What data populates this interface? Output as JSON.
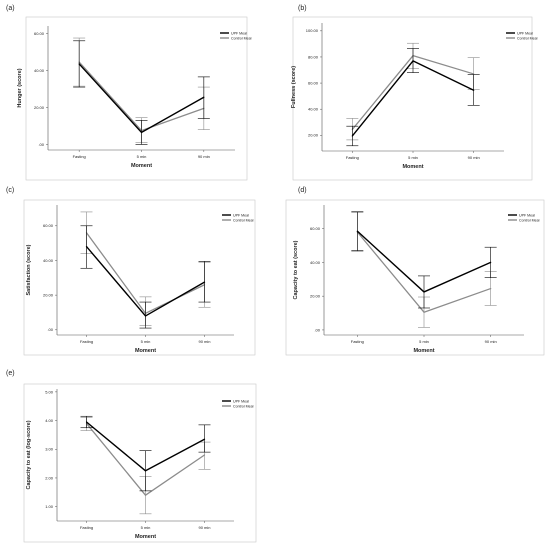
{
  "figure_title": "",
  "colors": {
    "upf": "#000000",
    "control": "#8c8c8c",
    "axis": "#555555",
    "frame": "#c8c8c8"
  },
  "chart_data": [
    {
      "panel": "(a)",
      "type": "line",
      "title": "",
      "categories": [
        "Fasting",
        "5 min",
        "90 min"
      ],
      "xlabel": "Moment",
      "ylabel": "Hunger (score)",
      "ylim": [
        -3,
        64
      ],
      "yticks": [
        0,
        20,
        40,
        60
      ],
      "ytick_labels": [
        ".00",
        "20.00",
        "40.00",
        "60.00"
      ],
      "grid": false,
      "legend_position": "top-right",
      "series": [
        {
          "name": "UPF Meal",
          "color": "#000000",
          "values": [
            43.5,
            6.5,
            25.5
          ],
          "ci_low": [
            31,
            0,
            14
          ],
          "ci_high": [
            56,
            13,
            36.5
          ]
        },
        {
          "name": "Control Meal",
          "color": "#8c8c8c",
          "values": [
            44.5,
            7.5,
            19.5
          ],
          "ci_low": [
            31.5,
            1,
            8
          ],
          "ci_high": [
            57.5,
            14.5,
            31
          ]
        }
      ]
    },
    {
      "panel": "(b)",
      "type": "line",
      "title": "",
      "categories": [
        "Fasting",
        "5 min",
        "90 min"
      ],
      "xlabel": "Moment",
      "ylabel": "Fullness (score)",
      "ylim": [
        8,
        106
      ],
      "yticks": [
        20,
        40,
        60,
        80,
        100
      ],
      "ytick_labels": [
        "20.00",
        "40.00",
        "60.00",
        "80.00",
        "100.00"
      ],
      "grid": false,
      "legend_position": "top-right",
      "series": [
        {
          "name": "UPF Meal",
          "color": "#000000",
          "values": [
            19.5,
            77,
            54.5
          ],
          "ci_low": [
            12,
            68,
            43
          ],
          "ci_high": [
            27,
            86.5,
            66.5
          ]
        },
        {
          "name": "Control Meal",
          "color": "#8c8c8c",
          "values": [
            24.5,
            81,
            67
          ],
          "ci_low": [
            16.5,
            71,
            55
          ],
          "ci_high": [
            33,
            90.5,
            79.5
          ]
        }
      ]
    },
    {
      "panel": "(c)",
      "type": "line",
      "title": "",
      "categories": [
        "Fasting",
        "5 min",
        "90 min"
      ],
      "xlabel": "Moment",
      "ylabel": "Satisfaction (score)",
      "ylim": [
        -3,
        72
      ],
      "yticks": [
        0,
        20,
        40,
        60
      ],
      "ytick_labels": [
        ".00",
        "20.00",
        "40.00",
        "60.00"
      ],
      "grid": false,
      "legend_position": "top-right",
      "series": [
        {
          "name": "UPF Meal",
          "color": "#000000",
          "values": [
            48,
            8,
            27.5
          ],
          "ci_low": [
            35.5,
            1,
            16
          ],
          "ci_high": [
            60,
            16,
            39.5
          ]
        },
        {
          "name": "Control Meal",
          "color": "#8c8c8c",
          "values": [
            56,
            9.5,
            26
          ],
          "ci_low": [
            44,
            2.5,
            13
          ],
          "ci_high": [
            68,
            19,
            39
          ]
        }
      ]
    },
    {
      "panel": "(d)",
      "type": "line",
      "title": "",
      "categories": [
        "Fasting",
        "5 min",
        "90 min"
      ],
      "xlabel": "Moment",
      "ylabel": "Capacity to eat (score)",
      "ylim": [
        -3,
        74
      ],
      "yticks": [
        0,
        20,
        40,
        60
      ],
      "ytick_labels": [
        ".00",
        "20.00",
        "40.00",
        "60.00"
      ],
      "grid": false,
      "legend_position": "top-right",
      "series": [
        {
          "name": "UPF Meal",
          "color": "#000000",
          "values": [
            58.5,
            22.5,
            40
          ],
          "ci_low": [
            47,
            13,
            31
          ],
          "ci_high": [
            70,
            32,
            49
          ]
        },
        {
          "name": "Control Meal",
          "color": "#8c8c8c",
          "values": [
            58,
            10.5,
            24.5
          ],
          "ci_low": [
            46.5,
            1.5,
            14.5
          ],
          "ci_high": [
            69.5,
            19.5,
            34.5
          ]
        }
      ]
    },
    {
      "panel": "(e)",
      "type": "line",
      "title": "",
      "categories": [
        "Fasting",
        "5 min",
        "90 min"
      ],
      "xlabel": "Moment",
      "ylabel": "Capacity to eat (log-score)",
      "ylim": [
        0.5,
        5.1
      ],
      "yticks": [
        1,
        2,
        3,
        4,
        5
      ],
      "ytick_labels": [
        "1.00",
        "2.00",
        "3.00",
        "4.00",
        "5.00"
      ],
      "grid": false,
      "legend_position": "top-right",
      "series": [
        {
          "name": "UPF Meal",
          "color": "#000000",
          "values": [
            3.95,
            2.25,
            3.35
          ],
          "ci_low": [
            3.75,
            1.55,
            2.9
          ],
          "ci_high": [
            4.15,
            2.95,
            3.85
          ]
        },
        {
          "name": "Control Meal",
          "color": "#8c8c8c",
          "values": [
            3.9,
            1.4,
            2.8
          ],
          "ci_low": [
            3.65,
            0.75,
            2.3
          ],
          "ci_high": [
            4.1,
            2.05,
            3.25
          ]
        }
      ]
    }
  ]
}
